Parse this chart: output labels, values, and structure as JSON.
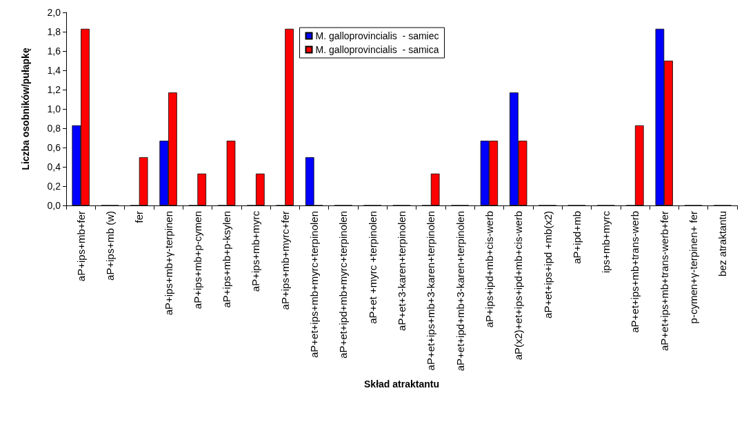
{
  "chart_data": {
    "type": "bar",
    "xlabel": "Skład atraktantu",
    "ylabel": "Liczba osobników/pułapkę",
    "categories": [
      "aP+ips+mb+fer",
      "aP+ips+mb (w)",
      "fer",
      "aP+ips+mb+γ-terpinen",
      "aP+ips+mb+p-cymen",
      "aP+ips+mb+p-ksylen",
      "aP+ips+mb+myrc",
      "aP+ips+mb+myrc+fer",
      "aP+et+ips+mb+myrc+terpinolen",
      "aP+et+ipd+mb+myrc+terpinolen",
      "aP+et +myrc +terpinolen",
      "aP+et+3-karen+terpinolen",
      "aP+et+ips+mb+3-karen+terpinolen",
      "aP+et+ipd+mb+3-karen+terpinolen",
      "aP+ips+ipd+mb+cis-werb",
      "aP(x2)+et+ips+ipd+mb+cis-werb",
      "aP+et+ips+ipd +mb(x2)",
      "aP+ipd+mb",
      "ips+mb+myrc",
      "aP+et+ips+mb+trans-werb",
      "aP+et+ips+mb+trans-werb+fer",
      "p-cymen+γ-terpinen+ fer",
      "bez atraktantu"
    ],
    "series": [
      {
        "name": "M. galloprovincialis  - samiec",
        "color": "#0000ff",
        "values": [
          0.83,
          0,
          0,
          0.67,
          0,
          0,
          0,
          0,
          0.5,
          0,
          0,
          0,
          0,
          0,
          0.67,
          1.17,
          0,
          0,
          0,
          0,
          1.83,
          0,
          0
        ]
      },
      {
        "name": "M. galloprovincialis  - samica",
        "color": "#ff0000",
        "values": [
          1.83,
          0,
          0.5,
          1.17,
          0.33,
          0.67,
          0.33,
          1.83,
          0,
          0,
          0,
          0,
          0.33,
          0,
          0.67,
          0.67,
          0,
          0,
          0,
          0.83,
          1.5,
          0,
          0
        ]
      }
    ],
    "ylim": [
      0,
      2
    ],
    "yticks": [
      {
        "value": 0,
        "label": "0,0"
      },
      {
        "value": 0.2,
        "label": "0,2"
      },
      {
        "value": 0.4,
        "label": "0,4"
      },
      {
        "value": 0.6,
        "label": "0,6"
      },
      {
        "value": 0.8,
        "label": "0,8"
      },
      {
        "value": 1,
        "label": "1,0"
      },
      {
        "value": 1.2,
        "label": "1,2"
      },
      {
        "value": 1.4,
        "label": "1,4"
      },
      {
        "value": 1.6,
        "label": "1,6"
      },
      {
        "value": 1.8,
        "label": "1,8"
      },
      {
        "value": 2,
        "label": "2,0"
      }
    ],
    "grid": false,
    "legend": "top"
  }
}
